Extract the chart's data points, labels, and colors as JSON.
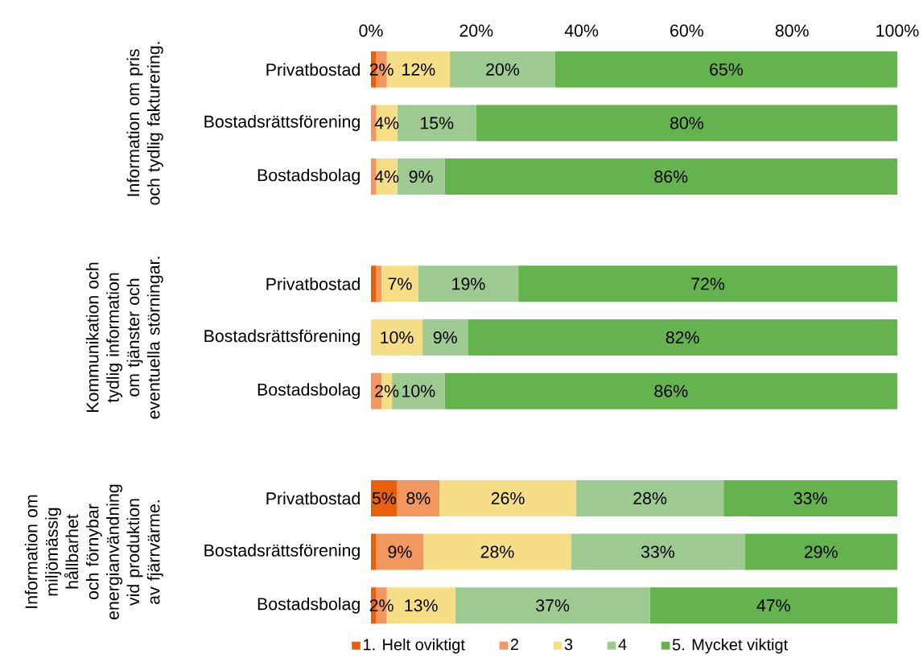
{
  "chart_data": {
    "type": "bar",
    "orientation": "horizontal",
    "stacked": true,
    "categories": [
      "Privatbostad",
      "Bostadsrättsförening",
      "Bostadsbolag",
      null,
      "Privatbostad",
      "Bostadsrättsförening",
      "Bostadsbolag",
      null,
      "Privatbostad",
      "Bostadsrättsförening",
      "Bostadsbolag"
    ],
    "series": [
      {
        "name": "1. Helt oviktigt",
        "color": "#e8600c",
        "values": [
          1,
          0,
          0,
          null,
          1,
          0,
          0,
          null,
          5,
          1,
          1
        ],
        "value_labels": [
          null,
          null,
          null,
          null,
          null,
          null,
          null,
          null,
          "5%",
          null,
          null
        ]
      },
      {
        "name": "2",
        "color": "#f2975e",
        "values": [
          2,
          1,
          1,
          null,
          1,
          0,
          2,
          null,
          8,
          9,
          2
        ],
        "value_labels": [
          "2%",
          null,
          null,
          null,
          null,
          null,
          null,
          null,
          "8%",
          "9%",
          "2%"
        ]
      },
      {
        "name": "3",
        "color": "#f5de86",
        "values": [
          12,
          4,
          4,
          null,
          7,
          9.8,
          2,
          null,
          26,
          28,
          13
        ],
        "value_labels": [
          "12%",
          "4%",
          "4%",
          null,
          "7%",
          "10%",
          "2%",
          null,
          "26%",
          "28%",
          "13%"
        ]
      },
      {
        "name": "4",
        "color": "#9dca91",
        "values": [
          20,
          15,
          9,
          null,
          19,
          8.6,
          10,
          null,
          28,
          33,
          37
        ],
        "value_labels": [
          "20%",
          "15%",
          "9%",
          null,
          "19%",
          "9%",
          "10%",
          null,
          "28%",
          "33%",
          "37%"
        ]
      },
      {
        "name": "5. Mycket viktigt",
        "color": "#65b34f",
        "values": [
          65,
          80,
          86,
          null,
          72,
          81.6,
          86,
          null,
          33,
          29,
          47
        ],
        "value_labels": [
          "65%",
          "80%",
          "86%",
          null,
          "72%",
          "82%",
          "86%",
          null,
          "33%",
          "29%",
          "47%"
        ]
      }
    ],
    "xlim": [
      0,
      100
    ],
    "xticks": [
      {
        "value": 0,
        "label": "0%"
      },
      {
        "value": 20,
        "label": "20%"
      },
      {
        "value": 40,
        "label": "40%"
      },
      {
        "value": 60,
        "label": "60%"
      },
      {
        "value": 80,
        "label": "80%"
      },
      {
        "value": 100,
        "label": "100%"
      }
    ],
    "legend": "bottom",
    "annotations": [
      "Information om pris och tydlig fakturering.",
      "Kommunikation och tydlig information om tjänster och eventuella störningar.",
      "Information om miljömässig hållbarhet och förnybar energianvändning vid produktion av fjärrvärme."
    ]
  }
}
